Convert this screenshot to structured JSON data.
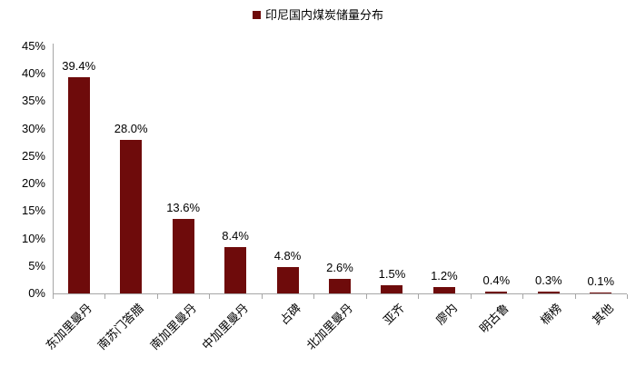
{
  "legend": {
    "label": "印尼国内煤炭储量分布",
    "marker_color": "#6e0b0b"
  },
  "chart_data": {
    "type": "bar",
    "title": "印尼国内煤炭储量分布",
    "categories": [
      "东加里曼丹",
      "南苏门答腊",
      "南加里曼丹",
      "中加里曼丹",
      "占碑",
      "北加里曼丹",
      "亚齐",
      "廖内",
      "明古鲁",
      "楠榜",
      "其他"
    ],
    "values": [
      39.4,
      28.0,
      13.6,
      8.4,
      4.8,
      2.6,
      1.5,
      1.2,
      0.4,
      0.3,
      0.1
    ],
    "value_labels": [
      "39.4%",
      "28.0%",
      "13.6%",
      "8.4%",
      "4.8%",
      "2.6%",
      "1.5%",
      "1.2%",
      "0.4%",
      "0.3%",
      "0.1%"
    ],
    "xlabel": "",
    "ylabel": "",
    "ylim": [
      0,
      45
    ],
    "ytick_step": 5,
    "ytick_labels": [
      "0%",
      "5%",
      "10%",
      "15%",
      "20%",
      "25%",
      "30%",
      "35%",
      "40%",
      "45%"
    ],
    "grid": false,
    "legend_position": "top-center",
    "bar_color": "#6e0b0b",
    "axis_color": "#a6a6a6",
    "text_color": "#000000"
  }
}
